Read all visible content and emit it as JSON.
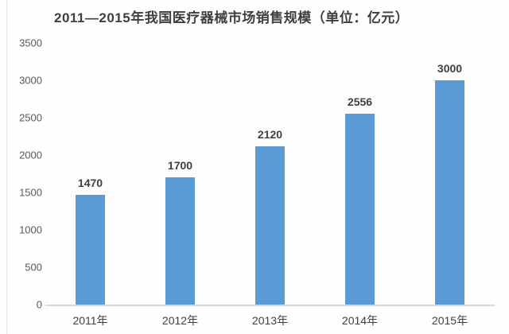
{
  "title": "2011—2015年我国医疗器械市场销售规模（单位：亿元）",
  "chart_data": {
    "type": "bar",
    "title": "2011—2015年我国医疗器械市场销售规模（单位：亿元）",
    "categories": [
      "2011年",
      "2012年",
      "2013年",
      "2014年",
      "2015年"
    ],
    "values": [
      1470,
      1700,
      2120,
      2556,
      3000
    ],
    "xlabel": "",
    "ylabel": "",
    "ylim": [
      0,
      3500
    ],
    "yticks": [
      0,
      500,
      1000,
      1500,
      2000,
      2500,
      3000,
      3500
    ],
    "grid": false,
    "legend_position": "none",
    "data_labels": true
  },
  "colors": {
    "bar": "#5b9bd5",
    "title_text": "#3f3f3f",
    "axis_tick_text": "#595959",
    "value_label_text": "#404040",
    "axis_line": "#d9d9d9",
    "background": "#fefefe",
    "left_border": "#e6e6e6"
  }
}
